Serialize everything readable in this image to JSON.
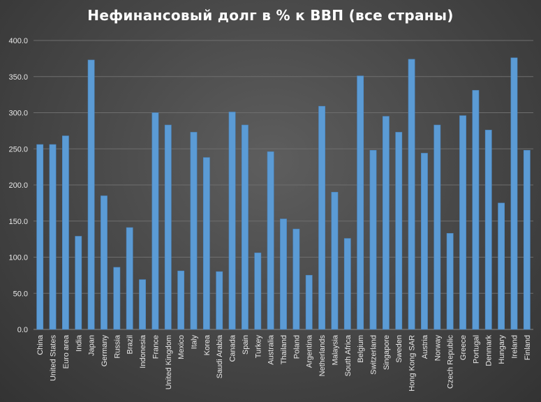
{
  "title": "Нефинансовый долг в % к ВВП (все страны)",
  "colors": {
    "bar": "#5b9bd5",
    "bar_edge": "#4a86c0",
    "grid": "#6e6e6e",
    "text": "#e8e8e8"
  },
  "chart_data": {
    "type": "bar",
    "title": "Нефинансовый долг в % к ВВП (все страны)",
    "xlabel": "",
    "ylabel": "",
    "ylim": [
      0,
      400
    ],
    "yticks": [
      "0.0",
      "50.0",
      "100.0",
      "150.0",
      "200.0",
      "250.0",
      "300.0",
      "350.0",
      "400.0"
    ],
    "grid": true,
    "legend": "none",
    "categories": [
      "China",
      "United States",
      "Euro area",
      "India",
      "Japan",
      "Germany",
      "Russia",
      "Brazil",
      "Indonesia",
      "France",
      "United Kingdom",
      "Mexico",
      "Italy",
      "Korea",
      "Saudi Arabia",
      "Canada",
      "Spain",
      "Turkey",
      "Australia",
      "Thailand",
      "Poland",
      "Argentina",
      "Netherlands",
      "Malaysia",
      "South Africa",
      "Belgium",
      "Switzerland",
      "Singapore",
      "Sweden",
      "Hong Kong SAR",
      "Austria",
      "Norway",
      "Czech Republic",
      "Greece",
      "Portugal",
      "Denmark",
      "Hungary",
      "Ireland",
      "Finland"
    ],
    "values": [
      256,
      256,
      268,
      129,
      373,
      185,
      86,
      141,
      69,
      300,
      283,
      81,
      273,
      238,
      80,
      301,
      283,
      106,
      246,
      153,
      139,
      75,
      309,
      190,
      126,
      351,
      248,
      295,
      273,
      374,
      244,
      283,
      133,
      296,
      331,
      276,
      175,
      376,
      248
    ]
  }
}
